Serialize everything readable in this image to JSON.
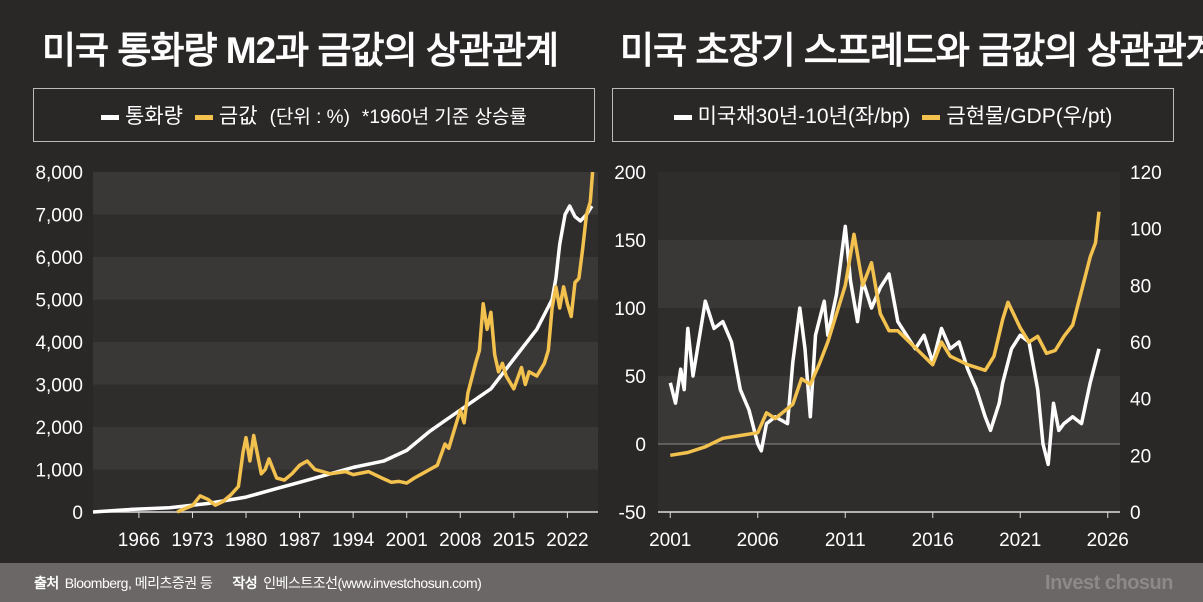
{
  "chart_data": [
    {
      "type": "line",
      "title": "미국 통화량 M2과 금값의 상관관계",
      "legend": {
        "series": [
          "통화량",
          "금값"
        ],
        "note": "(단위 : %)",
        "note2": "*1960년 기준 상승률"
      },
      "xlim": [
        1960,
        2026
      ],
      "ylim": [
        0,
        8000
      ],
      "yticks": [
        0,
        1000,
        2000,
        3000,
        4000,
        5000,
        6000,
        7000,
        8000
      ],
      "ytick_labels": [
        "0",
        "1,000",
        "2,000",
        "3,000",
        "4,000",
        "5,000",
        "6,000",
        "7,000",
        "8,000"
      ],
      "xticks": [
        1966,
        1973,
        1980,
        1987,
        1994,
        2001,
        2008,
        2015,
        2022
      ],
      "series": [
        {
          "name": "통화량",
          "color": "#ffffff",
          "x": [
            1960,
            1965,
            1970,
            1975,
            1980,
            1984,
            1987,
            1990,
            1994,
            1998,
            2001,
            2004,
            2008,
            2012,
            2015,
            2018,
            2020,
            2020.5,
            2021,
            2021.7,
            2022.3,
            2023,
            2023.7,
            2024.5,
            2025.2
          ],
          "y": [
            0,
            60,
            100,
            200,
            350,
            550,
            700,
            850,
            1050,
            1200,
            1450,
            1900,
            2400,
            2900,
            3600,
            4300,
            5000,
            5500,
            6300,
            7000,
            7200,
            6950,
            6850,
            7000,
            7200
          ]
        },
        {
          "name": "금값",
          "color": "#f2c14e",
          "x": [
            1971,
            1972,
            1973,
            1974,
            1975,
            1976,
            1977,
            1978,
            1979,
            1979.6,
            1980,
            1980.5,
            1981,
            1982,
            1982.5,
            1983,
            1984,
            1985,
            1986,
            1987,
            1988,
            1989,
            1990,
            1991,
            1993,
            1994,
            1996,
            1998,
            1999,
            2000,
            2001,
            2002,
            2003,
            2004,
            2005,
            2006,
            2006.5,
            2007,
            2008,
            2008.5,
            2009,
            2010,
            2010.5,
            2011,
            2011.5,
            2012,
            2012.5,
            2013,
            2013.5,
            2014,
            2015,
            2016,
            2016.5,
            2017,
            2018,
            2019,
            2019.5,
            2020,
            2020.5,
            2021,
            2021.5,
            2022,
            2022.5,
            2023,
            2023.5,
            2024,
            2024.5,
            2025,
            2025.3
          ],
          "y": [
            0,
            80,
            150,
            380,
            300,
            160,
            250,
            400,
            600,
            1400,
            1750,
            1200,
            1800,
            900,
            1000,
            1250,
            800,
            750,
            900,
            1100,
            1200,
            1000,
            950,
            900,
            950,
            880,
            950,
            780,
            700,
            720,
            680,
            800,
            900,
            1000,
            1100,
            1600,
            1500,
            1800,
            2400,
            2100,
            2800,
            3500,
            3800,
            4900,
            4300,
            4700,
            3700,
            3300,
            3500,
            3200,
            2900,
            3400,
            3000,
            3300,
            3200,
            3500,
            3800,
            4800,
            5300,
            4800,
            5300,
            4900,
            4600,
            5400,
            5500,
            6200,
            7000,
            7300,
            8000
          ]
        }
      ]
    },
    {
      "type": "line",
      "title": "미국 초장기 스프레드와 금값의 상관관계",
      "legend": {
        "series": [
          "미국채30년-10년(좌/bp)",
          "금현물/GDP(우/pt)"
        ]
      },
      "xlim": [
        2000.3,
        2026.7
      ],
      "ylim": [
        -50,
        200
      ],
      "y2lim": [
        0,
        120
      ],
      "yticks": [
        -50,
        0,
        50,
        100,
        150,
        200
      ],
      "y2ticks": [
        0,
        20,
        40,
        60,
        80,
        100,
        120
      ],
      "xticks": [
        2001,
        2006,
        2011,
        2016,
        2021,
        2026
      ],
      "series": [
        {
          "name": "미국채30년-10년(좌/bp)",
          "axis": "left",
          "color": "#ffffff",
          "x": [
            2001,
            2001.3,
            2001.6,
            2001.8,
            2002,
            2002.3,
            2003,
            2003.5,
            2004,
            2004.5,
            2005,
            2005.5,
            2006,
            2006.2,
            2006.5,
            2007,
            2007.7,
            2008,
            2008.4,
            2008.7,
            2009,
            2009.3,
            2009.8,
            2010,
            2010.5,
            2011,
            2011.3,
            2011.7,
            2012,
            2012.5,
            2013,
            2013.5,
            2014,
            2014.5,
            2015,
            2015.5,
            2016,
            2016.5,
            2017,
            2017.5,
            2018,
            2018.5,
            2019,
            2019.3,
            2019.8,
            2020,
            2020.5,
            2021,
            2021.5,
            2022,
            2022.3,
            2022.6,
            2022.9,
            2023.2,
            2023.5,
            2024,
            2024.5,
            2025,
            2025.5
          ],
          "y": [
            45,
            30,
            55,
            40,
            85,
            50,
            105,
            85,
            90,
            75,
            40,
            25,
            0,
            -5,
            15,
            20,
            15,
            60,
            100,
            70,
            20,
            80,
            105,
            80,
            110,
            160,
            120,
            90,
            120,
            100,
            115,
            125,
            90,
            80,
            70,
            80,
            60,
            85,
            70,
            75,
            55,
            40,
            20,
            10,
            30,
            45,
            70,
            80,
            75,
            40,
            0,
            -15,
            30,
            10,
            15,
            20,
            15,
            45,
            70
          ]
        },
        {
          "name": "금현물/GDP(우/pt)",
          "axis": "right",
          "color": "#f2c14e",
          "x": [
            2001,
            2002,
            2003,
            2004,
            2005,
            2006,
            2006.5,
            2007,
            2008,
            2008.5,
            2009,
            2009.5,
            2010,
            2011,
            2011.5,
            2012,
            2012.5,
            2013,
            2013.5,
            2014,
            2015,
            2016,
            2016.5,
            2017,
            2018,
            2019,
            2019.5,
            2020,
            2020.3,
            2021,
            2021.5,
            2022,
            2022.5,
            2023,
            2023.5,
            2024,
            2024.5,
            2025,
            2025.3,
            2025.5
          ],
          "y": [
            20,
            21,
            23,
            26,
            27,
            28,
            35,
            33,
            38,
            47,
            45,
            52,
            60,
            80,
            98,
            80,
            88,
            70,
            64,
            64,
            58,
            52,
            60,
            55,
            52,
            50,
            55,
            68,
            74,
            65,
            60,
            62,
            56,
            57,
            62,
            66,
            78,
            90,
            95,
            106
          ]
        }
      ]
    }
  ],
  "footer": {
    "source_label": "출처",
    "source": "Bloomberg, 메리츠증권 등",
    "author_label": "작성",
    "author": "인베스트조선(www.investchosun.com)",
    "brand": "Invest chosun"
  }
}
